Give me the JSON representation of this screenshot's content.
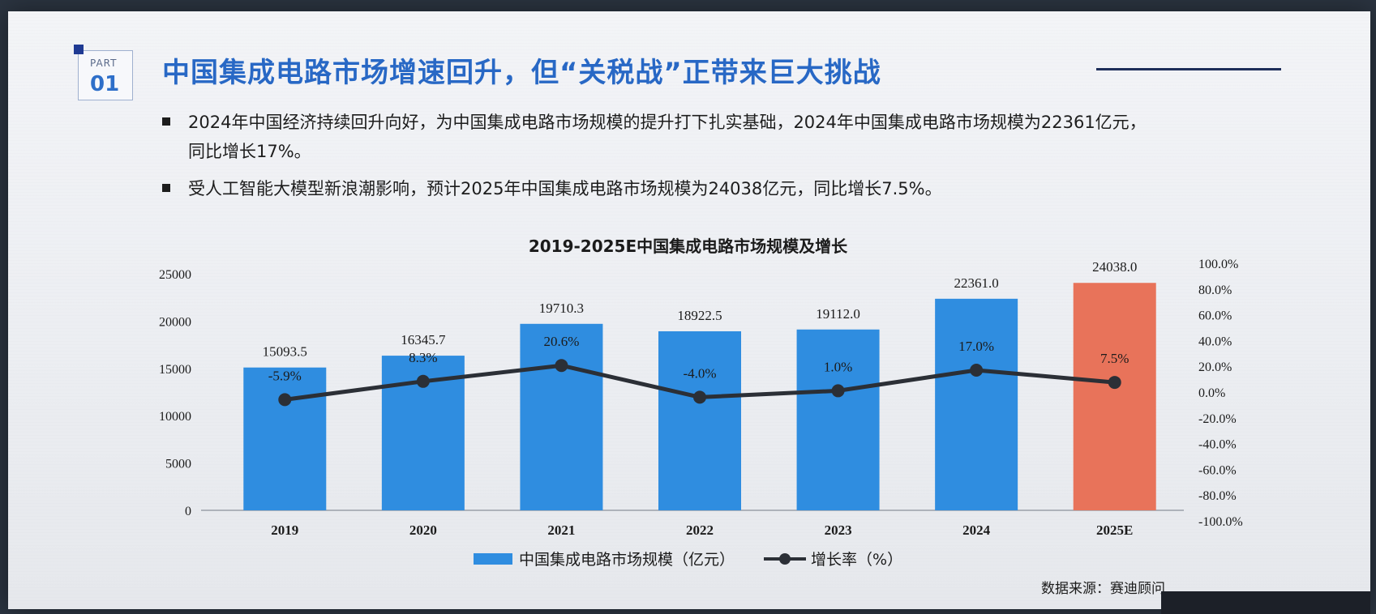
{
  "slide": {
    "part_label": "PART",
    "part_number": "01",
    "title": "中国集成电路市场增速回升，但“关税战”正带来巨大挑战",
    "bullets": [
      "2024年中国经济持续回升向好，为中国集成电路市场规模的提升打下扎实基础，2024年中国集成电路市场规模为22361亿元，",
      "同比增长17%。",
      "受人工智能大模型新浪潮影响，预计2025年中国集成电路市场规模为24038亿元，同比增长7.5%。"
    ],
    "source": "数据来源：赛迪顾问"
  },
  "chart_data": {
    "type": "bar",
    "title": "2019-2025E中国集成电路市场规模及增长",
    "categories": [
      "2019",
      "2020",
      "2021",
      "2022",
      "2023",
      "2024",
      "2025E"
    ],
    "series": [
      {
        "name": "中国集成电路市场规模（亿元）",
        "type": "bar",
        "axis": "left",
        "values": [
          15093.5,
          16345.7,
          19710.3,
          18922.5,
          19112.0,
          22361.0,
          24038.0
        ],
        "labels": [
          "15093.5",
          "16345.7",
          "19710.3",
          "18922.5",
          "19112.0",
          "22361.0",
          "24038.0"
        ],
        "color": "#2f8de0",
        "highlight_color": "#e8735a",
        "highlight_index": 6
      },
      {
        "name": "增长率（%）",
        "type": "line",
        "axis": "right",
        "values": [
          -5.9,
          8.3,
          20.6,
          -4.0,
          1.0,
          17.0,
          7.5
        ],
        "labels": [
          "-5.9%",
          "8.3%",
          "20.6%",
          "-4.0%",
          "1.0%",
          "17.0%",
          "7.5%"
        ],
        "color": "#2b2f36"
      }
    ],
    "y_left": {
      "ylim": [
        0,
        25000
      ],
      "ticks": [
        "0",
        "5000",
        "10000",
        "15000",
        "20000",
        "25000"
      ]
    },
    "y_right": {
      "ylim": [
        -100,
        100
      ],
      "ticks": [
        "-100.0%",
        "-80.0%",
        "-60.0%",
        "-40.0%",
        "-20.0%",
        "0.0%",
        "20.0%",
        "40.0%",
        "60.0%",
        "80.0%",
        "100.0%"
      ]
    },
    "legend_position": "bottom",
    "grid": false
  }
}
